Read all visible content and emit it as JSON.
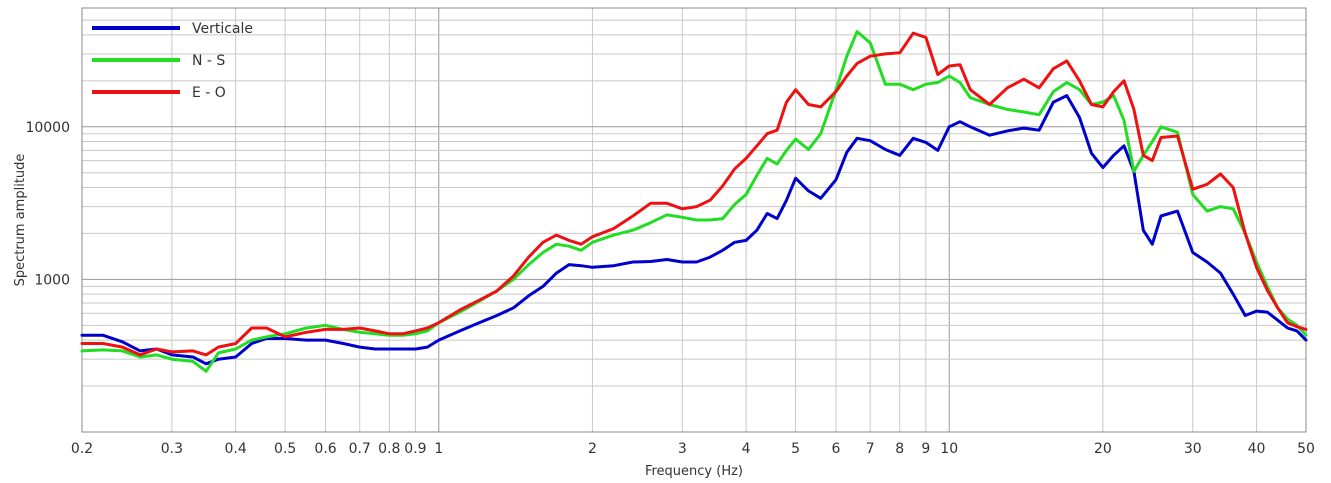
{
  "chart_data": {
    "type": "line",
    "title": "",
    "xlabel": "Frequency (Hz)",
    "ylabel": "Spectrum amplitude",
    "xscale": "log",
    "yscale": "log",
    "xlim": [
      0.2,
      50
    ],
    "ylim": [
      100,
      60000
    ],
    "grid": true,
    "legend_position": "top-left",
    "x_tick_labels": [
      {
        "value": 0.2,
        "label": "0.2"
      },
      {
        "value": 0.3,
        "label": "0.3"
      },
      {
        "value": 0.4,
        "label": "0.4"
      },
      {
        "value": 0.5,
        "label": "0.5"
      },
      {
        "value": 0.6,
        "label": "0.6"
      },
      {
        "value": 0.7,
        "label": "0.7"
      },
      {
        "value": 0.8,
        "label": "0.8"
      },
      {
        "value": 0.9,
        "label": "0.9"
      },
      {
        "value": 1,
        "label": "1"
      },
      {
        "value": 2,
        "label": "2"
      },
      {
        "value": 3,
        "label": "3"
      },
      {
        "value": 4,
        "label": "4"
      },
      {
        "value": 5,
        "label": "5"
      },
      {
        "value": 6,
        "label": "6"
      },
      {
        "value": 7,
        "label": "7"
      },
      {
        "value": 8,
        "label": "8"
      },
      {
        "value": 9,
        "label": "9"
      },
      {
        "value": 10,
        "label": "10"
      },
      {
        "value": 20,
        "label": "20"
      },
      {
        "value": 30,
        "label": "30"
      },
      {
        "value": 40,
        "label": "40"
      },
      {
        "value": 50,
        "label": "50"
      }
    ],
    "y_tick_labels": [
      {
        "value": 1000,
        "label": "1000"
      },
      {
        "value": 10000,
        "label": "10000"
      }
    ],
    "series": [
      {
        "name": "Verticale",
        "color": "#0000cc",
        "x": [
          0.2,
          0.22,
          0.24,
          0.26,
          0.28,
          0.3,
          0.33,
          0.35,
          0.37,
          0.4,
          0.43,
          0.46,
          0.5,
          0.55,
          0.6,
          0.65,
          0.7,
          0.75,
          0.8,
          0.85,
          0.9,
          0.95,
          1.0,
          1.1,
          1.2,
          1.3,
          1.4,
          1.5,
          1.6,
          1.7,
          1.8,
          1.9,
          2.0,
          2.2,
          2.4,
          2.6,
          2.8,
          3.0,
          3.2,
          3.4,
          3.6,
          3.8,
          4.0,
          4.2,
          4.4,
          4.6,
          4.8,
          5.0,
          5.3,
          5.6,
          6.0,
          6.3,
          6.6,
          7.0,
          7.5,
          8.0,
          8.5,
          9.0,
          9.5,
          10.0,
          10.5,
          11.0,
          12.0,
          13.0,
          14.0,
          15.0,
          16.0,
          17.0,
          18.0,
          19.0,
          20.0,
          21.0,
          22.0,
          23.0,
          24.0,
          25.0,
          26.0,
          28.0,
          30.0,
          32.0,
          34.0,
          36.0,
          38.0,
          40.0,
          42.0,
          44.0,
          46.0,
          48.0,
          50.0
        ],
        "y": [
          430,
          430,
          390,
          340,
          350,
          320,
          310,
          280,
          300,
          310,
          380,
          410,
          410,
          400,
          400,
          380,
          360,
          350,
          350,
          350,
          350,
          360,
          400,
          460,
          520,
          580,
          650,
          780,
          900,
          1100,
          1250,
          1230,
          1200,
          1230,
          1300,
          1310,
          1350,
          1300,
          1300,
          1400,
          1550,
          1750,
          1800,
          2100,
          2700,
          2500,
          3300,
          4600,
          3800,
          3400,
          4500,
          6800,
          8400,
          8100,
          7100,
          6500,
          8400,
          7900,
          7000,
          10000,
          10800,
          10000,
          8800,
          9400,
          9800,
          9500,
          14500,
          16000,
          11500,
          6700,
          5400,
          6500,
          7500,
          5100,
          2100,
          1700,
          2600,
          2800,
          1500,
          1300,
          1100,
          800,
          580,
          620,
          610,
          540,
          480,
          460,
          400
        ]
      },
      {
        "name": "N - S",
        "color": "#22dd22",
        "x": [
          0.2,
          0.22,
          0.24,
          0.26,
          0.28,
          0.3,
          0.33,
          0.35,
          0.37,
          0.4,
          0.43,
          0.46,
          0.5,
          0.55,
          0.6,
          0.65,
          0.7,
          0.75,
          0.8,
          0.85,
          0.9,
          0.95,
          1.0,
          1.1,
          1.2,
          1.3,
          1.4,
          1.5,
          1.6,
          1.7,
          1.8,
          1.9,
          2.0,
          2.2,
          2.4,
          2.6,
          2.8,
          3.0,
          3.2,
          3.4,
          3.6,
          3.8,
          4.0,
          4.2,
          4.4,
          4.6,
          4.8,
          5.0,
          5.3,
          5.6,
          6.0,
          6.3,
          6.6,
          7.0,
          7.5,
          8.0,
          8.5,
          9.0,
          9.5,
          10.0,
          10.5,
          11.0,
          12.0,
          13.0,
          14.0,
          15.0,
          16.0,
          17.0,
          18.0,
          19.0,
          20.0,
          21.0,
          22.0,
          23.0,
          24.0,
          25.0,
          26.0,
          28.0,
          30.0,
          32.0,
          34.0,
          36.0,
          38.0,
          40.0,
          42.0,
          44.0,
          46.0,
          48.0,
          50.0
        ],
        "y": [
          340,
          345,
          340,
          310,
          320,
          300,
          290,
          250,
          330,
          350,
          400,
          420,
          440,
          480,
          500,
          470,
          450,
          440,
          430,
          430,
          440,
          460,
          520,
          610,
          720,
          840,
          1000,
          1250,
          1500,
          1700,
          1650,
          1550,
          1750,
          1950,
          2100,
          2350,
          2650,
          2550,
          2450,
          2450,
          2500,
          3100,
          3600,
          4800,
          6200,
          5700,
          7000,
          8300,
          7100,
          9000,
          17500,
          29000,
          42000,
          35500,
          19000,
          19000,
          17500,
          19000,
          19500,
          21500,
          19500,
          15500,
          14000,
          13000,
          12500,
          12000,
          17000,
          19500,
          17500,
          14000,
          14500,
          16000,
          11000,
          5100,
          6500,
          8000,
          10000,
          9200,
          3600,
          2800,
          3000,
          2900,
          2000,
          1300,
          900,
          650,
          550,
          500,
          430
        ]
      },
      {
        "name": "E - O",
        "color": "#ee1111",
        "x": [
          0.2,
          0.22,
          0.24,
          0.26,
          0.28,
          0.3,
          0.33,
          0.35,
          0.37,
          0.4,
          0.43,
          0.46,
          0.5,
          0.55,
          0.6,
          0.65,
          0.7,
          0.75,
          0.8,
          0.85,
          0.9,
          0.95,
          1.0,
          1.1,
          1.2,
          1.3,
          1.4,
          1.5,
          1.6,
          1.7,
          1.8,
          1.9,
          2.0,
          2.2,
          2.4,
          2.6,
          2.8,
          3.0,
          3.2,
          3.4,
          3.6,
          3.8,
          4.0,
          4.2,
          4.4,
          4.6,
          4.8,
          5.0,
          5.3,
          5.6,
          6.0,
          6.3,
          6.6,
          7.0,
          7.5,
          8.0,
          8.5,
          9.0,
          9.5,
          10.0,
          10.5,
          11.0,
          12.0,
          13.0,
          14.0,
          15.0,
          16.0,
          17.0,
          18.0,
          19.0,
          20.0,
          21.0,
          22.0,
          23.0,
          24.0,
          25.0,
          26.0,
          28.0,
          30.0,
          32.0,
          34.0,
          36.0,
          38.0,
          40.0,
          42.0,
          44.0,
          46.0,
          48.0,
          50.0
        ],
        "y": [
          380,
          380,
          360,
          320,
          350,
          335,
          340,
          320,
          360,
          380,
          480,
          480,
          420,
          450,
          470,
          470,
          480,
          460,
          440,
          440,
          460,
          480,
          520,
          630,
          730,
          840,
          1050,
          1400,
          1750,
          1950,
          1800,
          1700,
          1900,
          2150,
          2600,
          3150,
          3150,
          2900,
          3000,
          3300,
          4100,
          5300,
          6200,
          7500,
          9000,
          9500,
          14500,
          17500,
          14000,
          13500,
          17000,
          21500,
          26000,
          29000,
          30000,
          30500,
          41000,
          38500,
          22000,
          25000,
          25500,
          17500,
          14000,
          18000,
          20500,
          18000,
          24000,
          27000,
          20000,
          14000,
          13500,
          17000,
          20000,
          13000,
          6500,
          6000,
          8500,
          8700,
          3900,
          4200,
          4900,
          4000,
          2000,
          1200,
          850,
          650,
          520,
          490,
          470
        ]
      }
    ]
  }
}
